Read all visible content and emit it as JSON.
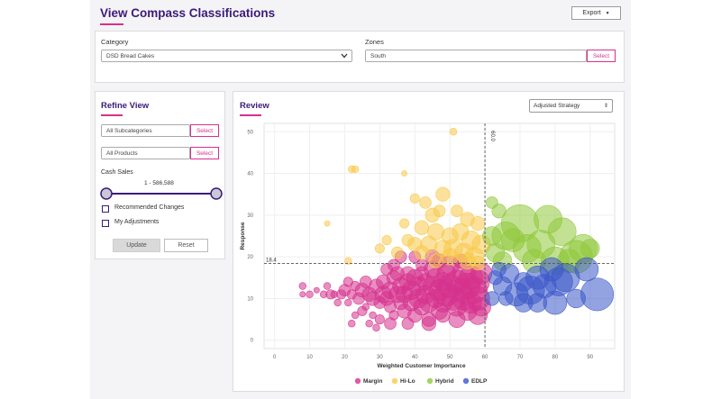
{
  "page": {
    "title": "View Compass Classifications",
    "export_label": "Export"
  },
  "filters": {
    "category_label": "Category",
    "category_value": "DSD Bread Cakes",
    "zones_label": "Zones",
    "zones_value": "South",
    "select_label": "Select"
  },
  "refine": {
    "title": "Refine View",
    "subcategories_value": "All Subcategories",
    "products_value": "All Products",
    "select_label": "Select",
    "cash_sales_label": "Cash Sales",
    "range_text": "1 - 586,588",
    "range_fraction": [
      0,
      1
    ],
    "checkbox_recommended": "Recommended Changes",
    "checkbox_adjustments": "My Adjustments",
    "update_label": "Update",
    "reset_label": "Reset"
  },
  "review": {
    "title": "Review",
    "strategy_value": "Adjusted Strategy"
  },
  "chart_data": {
    "type": "scatter",
    "xlabel": "Weighted Customer Importance",
    "ylabel": "Response",
    "xlim": [
      -3,
      97
    ],
    "ylim": [
      -2,
      52
    ],
    "x_ticks": [
      0,
      10,
      20,
      30,
      40,
      50,
      60,
      70,
      80,
      90
    ],
    "y_ticks": [
      0,
      10,
      20,
      30,
      40,
      50
    ],
    "grid": true,
    "vline": {
      "x": 60.0,
      "label": "60.0"
    },
    "hline": {
      "y": 18.4,
      "label": "18.4"
    },
    "legend_position": "bottom",
    "series": [
      {
        "name": "Margin",
        "color": "#d6318d",
        "points": [
          [
            8,
            13,
            1.5
          ],
          [
            8,
            11,
            1.2
          ],
          [
            10,
            11,
            1.5
          ],
          [
            12,
            12,
            1.2
          ],
          [
            14,
            11,
            1.5
          ],
          [
            16,
            11,
            2
          ],
          [
            17,
            11,
            1.5
          ],
          [
            19,
            11,
            2
          ],
          [
            20,
            12,
            2.5
          ],
          [
            21,
            9,
            1.5
          ],
          [
            22,
            11,
            2
          ],
          [
            23,
            13,
            2
          ],
          [
            24,
            10,
            2.5
          ],
          [
            25,
            12,
            3
          ],
          [
            26,
            8,
            1.5
          ],
          [
            27,
            11,
            3
          ],
          [
            28,
            10,
            3
          ],
          [
            28,
            6,
            1.5
          ],
          [
            29,
            13,
            3
          ],
          [
            30,
            9,
            2.5
          ],
          [
            30,
            5,
            2
          ],
          [
            31,
            11,
            3.5
          ],
          [
            31,
            14,
            3
          ],
          [
            32,
            10,
            3
          ],
          [
            33,
            12,
            3.5
          ],
          [
            33,
            8,
            2.5
          ],
          [
            34,
            15,
            3
          ],
          [
            34,
            6,
            2
          ],
          [
            35,
            11,
            3.5
          ],
          [
            35,
            16,
            3
          ],
          [
            36,
            9,
            3
          ],
          [
            36,
            13,
            3.5
          ],
          [
            37,
            7,
            3
          ],
          [
            37,
            11,
            3.5
          ],
          [
            38,
            14,
            3.5
          ],
          [
            38,
            16,
            3
          ],
          [
            39,
            9,
            3.5
          ],
          [
            39,
            12,
            4
          ],
          [
            40,
            6,
            3
          ],
          [
            40,
            15,
            3.5
          ],
          [
            41,
            10,
            4
          ],
          [
            41,
            13,
            4
          ],
          [
            42,
            8,
            3.5
          ],
          [
            42,
            16,
            3
          ],
          [
            42,
            18,
            2.5
          ],
          [
            43,
            11,
            4
          ],
          [
            43,
            14,
            3.5
          ],
          [
            44,
            9,
            4
          ],
          [
            44,
            5,
            3
          ],
          [
            45,
            13,
            4
          ],
          [
            45,
            17,
            3.5
          ],
          [
            46,
            10,
            4
          ],
          [
            46,
            15,
            4
          ],
          [
            47,
            12,
            4.5
          ],
          [
            47,
            7,
            3.5
          ],
          [
            48,
            14,
            4
          ],
          [
            48,
            9,
            4
          ],
          [
            49,
            11,
            5
          ],
          [
            49,
            16,
            4
          ],
          [
            50,
            13,
            5
          ],
          [
            50,
            18,
            4
          ],
          [
            51,
            10,
            5
          ],
          [
            52,
            14,
            5
          ],
          [
            52,
            8,
            4
          ],
          [
            53,
            12,
            5
          ],
          [
            54,
            16,
            5
          ],
          [
            54,
            10,
            5
          ],
          [
            55,
            13,
            5.5
          ],
          [
            56,
            15,
            5
          ],
          [
            56,
            9,
            4.5
          ],
          [
            57,
            12,
            5.5
          ],
          [
            58,
            14,
            5
          ],
          [
            58,
            10,
            5
          ],
          [
            59,
            16,
            4.5
          ],
          [
            59,
            8,
            4
          ],
          [
            34,
            18,
            2.5
          ],
          [
            36,
            20,
            2.5
          ],
          [
            40,
            20,
            2.5
          ],
          [
            45,
            20,
            3
          ],
          [
            47,
            19,
            3
          ],
          [
            53,
            19,
            3
          ],
          [
            22,
            4,
            1.5
          ],
          [
            23,
            6,
            1.5
          ],
          [
            25,
            7,
            2
          ],
          [
            27,
            4,
            1.5
          ],
          [
            29,
            3,
            1.5
          ],
          [
            33,
            4,
            2.5
          ],
          [
            38,
            4,
            2.5
          ],
          [
            44,
            4,
            3
          ],
          [
            48,
            6,
            3
          ],
          [
            52,
            5,
            3.5
          ],
          [
            55,
            7,
            4
          ],
          [
            58,
            6,
            4
          ],
          [
            15,
            13,
            1.5
          ],
          [
            18,
            9,
            1.5
          ],
          [
            21,
            14,
            2
          ],
          [
            26,
            14,
            2.5
          ],
          [
            32,
            17,
            2.5
          ]
        ]
      },
      {
        "name": "Hi-Lo",
        "color": "#f7c948",
        "points": [
          [
            22,
            41,
            1.5
          ],
          [
            23,
            41,
            1.5
          ],
          [
            37,
            40,
            1.2
          ],
          [
            51,
            50,
            1.5
          ],
          [
            15,
            28,
            1.2
          ],
          [
            21,
            19,
            1.5
          ],
          [
            40,
            34,
            2
          ],
          [
            43,
            33,
            2.5
          ],
          [
            48,
            35,
            3
          ],
          [
            45,
            30,
            3
          ],
          [
            52,
            31,
            2.5
          ],
          [
            55,
            29,
            3
          ],
          [
            58,
            28,
            3
          ],
          [
            42,
            27,
            3
          ],
          [
            46,
            26,
            3.5
          ],
          [
            50,
            25,
            3.5
          ],
          [
            53,
            26,
            3.5
          ],
          [
            56,
            24,
            4
          ],
          [
            59,
            23,
            4
          ],
          [
            40,
            23,
            3
          ],
          [
            44,
            23,
            3.5
          ],
          [
            48,
            22,
            3.5
          ],
          [
            51,
            22,
            4
          ],
          [
            54,
            21,
            4
          ],
          [
            57,
            20,
            4
          ],
          [
            35,
            21,
            2.5
          ],
          [
            30,
            22,
            2
          ],
          [
            32,
            24,
            2
          ],
          [
            38,
            24,
            2.5
          ],
          [
            47,
            31,
            2.5
          ],
          [
            37,
            28,
            2
          ],
          [
            42,
            21,
            3
          ],
          [
            46,
            19,
            3
          ],
          [
            50,
            20,
            3.5
          ],
          [
            55,
            19,
            3.5
          ],
          [
            58,
            18.5,
            3
          ]
        ]
      },
      {
        "name": "Hybrid",
        "color": "#8fc93a",
        "points": [
          [
            62,
            33,
            2.5
          ],
          [
            64,
            31,
            3
          ],
          [
            70,
            28,
            8
          ],
          [
            78,
            29,
            6
          ],
          [
            82,
            26,
            6
          ],
          [
            88,
            22,
            6
          ],
          [
            66,
            25,
            6
          ],
          [
            72,
            22,
            6
          ],
          [
            76,
            23,
            6
          ],
          [
            80,
            19,
            6
          ],
          [
            86,
            20,
            7
          ],
          [
            63,
            21,
            4
          ],
          [
            68,
            24,
            5
          ],
          [
            74,
            19,
            5
          ],
          [
            84,
            19,
            5
          ],
          [
            62,
            25,
            4
          ],
          [
            90,
            22,
            4
          ],
          [
            65,
            19,
            4
          ]
        ]
      },
      {
        "name": "EDLP",
        "color": "#3a58c9",
        "points": [
          [
            63,
            15,
            3
          ],
          [
            65,
            13,
            4
          ],
          [
            67,
            16,
            4
          ],
          [
            69,
            11,
            5
          ],
          [
            71,
            14,
            4
          ],
          [
            73,
            12,
            6
          ],
          [
            75,
            15,
            5
          ],
          [
            77,
            13,
            5
          ],
          [
            79,
            17,
            5
          ],
          [
            81,
            14,
            6
          ],
          [
            83,
            15,
            6
          ],
          [
            80,
            9,
            5
          ],
          [
            71,
            9,
            4
          ],
          [
            66,
            10,
            3
          ],
          [
            62,
            10,
            3
          ],
          [
            64,
            17,
            3
          ],
          [
            92,
            11,
            7
          ],
          [
            86,
            10,
            4
          ],
          [
            75,
            9,
            4
          ],
          [
            89,
            17,
            5
          ]
        ]
      }
    ]
  }
}
